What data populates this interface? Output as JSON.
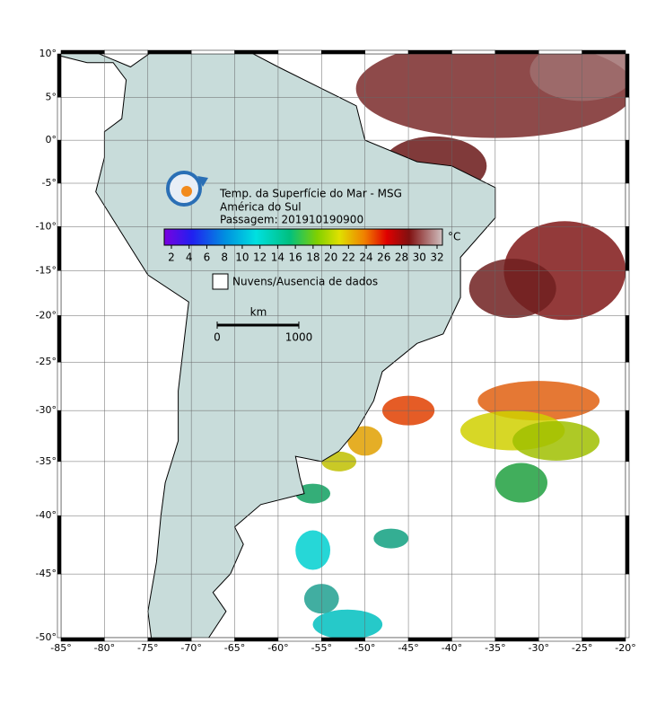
{
  "map": {
    "title": [
      "Temp. da Superfície do Mar - MSG",
      "América do Sul",
      "Passagem: 201910190900"
    ],
    "colorbar": {
      "ticks": [
        2,
        4,
        6,
        8,
        10,
        12,
        14,
        16,
        18,
        20,
        22,
        24,
        26,
        28,
        30,
        32
      ],
      "unit": "°C"
    },
    "legend": "Nuvens/Ausencia de dados",
    "scale": {
      "unit": "km",
      "ticks": [
        0,
        1000
      ]
    },
    "xticks": [
      {
        "value": -85,
        "label": "-85°"
      },
      {
        "value": -80,
        "label": "-80°"
      },
      {
        "value": -75,
        "label": "-75°"
      },
      {
        "value": -70,
        "label": "-70°"
      },
      {
        "value": -65,
        "label": "-65°"
      },
      {
        "value": -60,
        "label": "-60°"
      },
      {
        "value": -55,
        "label": "-55°"
      },
      {
        "value": -50,
        "label": "-50°"
      },
      {
        "value": -45,
        "label": "-45°"
      },
      {
        "value": -40,
        "label": "-40°"
      },
      {
        "value": -35,
        "label": "-35°"
      },
      {
        "value": -30,
        "label": "-30°"
      },
      {
        "value": -25,
        "label": "-25°"
      },
      {
        "value": -20,
        "label": "-20°"
      }
    ],
    "yticks": [
      {
        "value": 10,
        "label": "10°"
      },
      {
        "value": 5,
        "label": "5°"
      },
      {
        "value": 0,
        "label": "0°"
      },
      {
        "value": -5,
        "label": "-5°"
      },
      {
        "value": -10,
        "label": "-10°"
      },
      {
        "value": -15,
        "label": "-15°"
      },
      {
        "value": -20,
        "label": "-20°"
      },
      {
        "value": -25,
        "label": "-25°"
      },
      {
        "value": -30,
        "label": "-30°"
      },
      {
        "value": -35,
        "label": "-35°"
      },
      {
        "value": -40,
        "label": "-40°"
      },
      {
        "value": -45,
        "label": "-45°"
      },
      {
        "value": -50,
        "label": "-50°"
      }
    ]
  }
}
